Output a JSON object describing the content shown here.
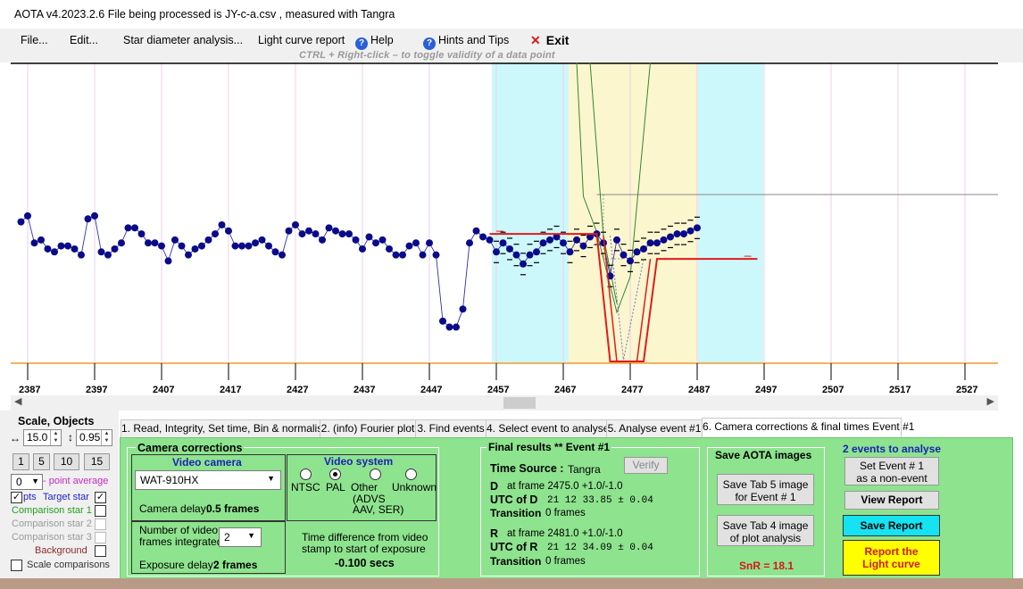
{
  "window": {
    "title": "AOTA v4.2023.2.6   File being processed is  JY-c-a.csv ,  measured with Tangra"
  },
  "menu": {
    "file": "File...",
    "edit": "Edit...",
    "star_diameter": "Star diameter analysis...",
    "light_curve_report": "Light curve report",
    "help": "Help",
    "hints": "Hints and Tips",
    "exit": "Exit",
    "hint": "CTRL + Right-click   –   to toggle validity of a data point"
  },
  "chart_data": {
    "type": "line",
    "x_ticks": [
      2387,
      2397,
      2407,
      2417,
      2427,
      2437,
      2447,
      2457,
      2467,
      2477,
      2487,
      2497,
      2507,
      2517,
      2527
    ],
    "xlim": [
      2386,
      2527
    ],
    "ylim": [
      0,
      100
    ],
    "series_target": [
      [
        2386,
        47
      ],
      [
        2387,
        49
      ],
      [
        2388,
        40
      ],
      [
        2389,
        41
      ],
      [
        2390,
        38
      ],
      [
        2391,
        37
      ],
      [
        2392,
        39
      ],
      [
        2393,
        39
      ],
      [
        2394,
        38
      ],
      [
        2395,
        36
      ],
      [
        2396,
        48
      ],
      [
        2397,
        49
      ],
      [
        2398,
        37
      ],
      [
        2399,
        36
      ],
      [
        2400,
        38
      ],
      [
        2401,
        40
      ],
      [
        2402,
        45
      ],
      [
        2403,
        45
      ],
      [
        2404,
        43
      ],
      [
        2405,
        40
      ],
      [
        2406,
        40
      ],
      [
        2407,
        39
      ],
      [
        2408,
        34
      ],
      [
        2409,
        41
      ],
      [
        2410,
        39
      ],
      [
        2411,
        36
      ],
      [
        2412,
        38
      ],
      [
        2413,
        39
      ],
      [
        2414,
        41
      ],
      [
        2415,
        43
      ],
      [
        2416,
        46
      ],
      [
        2417,
        44
      ],
      [
        2418,
        39
      ],
      [
        2419,
        39
      ],
      [
        2420,
        39
      ],
      [
        2421,
        40
      ],
      [
        2422,
        41
      ],
      [
        2423,
        39
      ],
      [
        2424,
        37
      ],
      [
        2425,
        36
      ],
      [
        2426,
        44
      ],
      [
        2427,
        46
      ],
      [
        2428,
        43
      ],
      [
        2429,
        44
      ],
      [
        2430,
        43
      ],
      [
        2431,
        41
      ],
      [
        2432,
        45
      ],
      [
        2433,
        44
      ],
      [
        2434,
        43
      ],
      [
        2435,
        43
      ],
      [
        2436,
        41
      ],
      [
        2437,
        38
      ],
      [
        2438,
        42
      ],
      [
        2439,
        40
      ],
      [
        2440,
        41
      ],
      [
        2441,
        38
      ],
      [
        2442,
        36
      ],
      [
        2443,
        36
      ],
      [
        2444,
        39
      ],
      [
        2445,
        40
      ],
      [
        2446,
        36
      ],
      [
        2447,
        40
      ],
      [
        2448,
        36
      ],
      [
        2449,
        14
      ],
      [
        2450,
        12
      ],
      [
        2451,
        12
      ],
      [
        2452,
        18
      ],
      [
        2453,
        40
      ],
      [
        2454,
        44
      ],
      [
        2455,
        42
      ],
      [
        2456,
        41
      ],
      [
        2457,
        37
      ],
      [
        2458,
        40
      ],
      [
        2459,
        38
      ],
      [
        2460,
        36
      ],
      [
        2461,
        33
      ],
      [
        2462,
        36
      ],
      [
        2463,
        37
      ],
      [
        2464,
        40
      ],
      [
        2465,
        41
      ],
      [
        2466,
        42
      ],
      [
        2467,
        40
      ],
      [
        2468,
        37
      ],
      [
        2469,
        41
      ],
      [
        2470,
        39
      ],
      [
        2471,
        42
      ],
      [
        2472,
        43
      ],
      [
        2473,
        40
      ],
      [
        2474,
        29
      ],
      [
        2475,
        41
      ],
      [
        2476,
        36
      ],
      [
        2477,
        34
      ],
      [
        2478,
        37
      ],
      [
        2479,
        38
      ],
      [
        2480,
        40
      ],
      [
        2481,
        40
      ],
      [
        2482,
        41
      ],
      [
        2483,
        42
      ],
      [
        2484,
        43
      ],
      [
        2485,
        43
      ],
      [
        2486,
        44
      ],
      [
        2487,
        45
      ]
    ],
    "series_target_comment": "",
    "fit_level_baseline": 43,
    "fit_level_event": 0
  },
  "left": {
    "scale_objects": "Scale,  Objects",
    "scale_val": "15.0",
    "scale_val2": "0.95",
    "btn1": "1",
    "btn5": "5",
    "btn10": "10",
    "btn15": "15",
    "avg_val": "0",
    "avg_label": "- point average",
    "pts": "pts",
    "target_star": "Target star",
    "comp1": "Comparison star 1",
    "comp2": "Comparison star 2",
    "comp3": "Comparison star 3",
    "background": "Background",
    "scale_comparisons": "Scale comparisons"
  },
  "tabs": [
    "1.  Read, Integrity, Set time, Bin & normalise",
    "2. (info)  Fourier plot",
    "3. Find events",
    "4. Select event to analyse",
    "5. Analyse event #1",
    "6. Camera corrections & final times Event #1"
  ],
  "camera": {
    "group_title": "Camera corrections",
    "video_camera": "Video camera",
    "camera_model": "WAT-910HX",
    "camera_delay_label": "Camera delay:",
    "camera_delay_value": "0.5 frames",
    "video_system": "Video system",
    "ntsc": "NTSC",
    "pal": "PAL",
    "other": "Other",
    "unknown": "Unknown",
    "other_detail1": "(ADVS",
    "other_detail2": "AAV, SER)",
    "frames_label1": "Number of video",
    "frames_label2": "frames integrated",
    "frames_value": "2",
    "exposure_delay_label": "Exposure delay:",
    "exposure_delay_value": "2 frames",
    "timediff1": "Time difference from video",
    "timediff2": "stamp to start of exposure",
    "timediff_value": "-0.100 secs"
  },
  "final": {
    "title": "Final results  **   Event #1",
    "time_source_label": "Time Source :",
    "time_source_value": "Tangra",
    "verify": "Verify",
    "d_label": "D",
    "d_frame": "at frame 2475.0  +1.0/-1.0",
    "utc_d_label": "UTC of D",
    "utc_d": "21 12 33.85  ± 0.04",
    "transition": "Transition",
    "transition_d": "0 frames",
    "r_label": "R",
    "r_frame": "at frame 2481.0  +1.0/-1.0",
    "utc_r_label": "UTC of R",
    "utc_r": "21 12 34.09  ± 0.04",
    "transition_r": "0 frames"
  },
  "save": {
    "title": "Save AOTA images",
    "tab5_1": "Save Tab 5 image",
    "tab5_2": "for Event # 1",
    "tab4_1": "Save Tab 4 image",
    "tab4_2": "of plot analysis",
    "snr": "SnR = 18.1"
  },
  "events": {
    "title": "2 events to analyse",
    "set_event1": "Set Event # 1",
    "set_event2": "as a non-event",
    "view_report": "View Report",
    "save_report": "Save Report",
    "report1": "Report the",
    "report2": "Light curve"
  },
  "colors": {
    "panel_green": "#8ee38e",
    "cyan": "#cdf8fb",
    "yellow": "#fcf6cf",
    "fit_red": "#e11b1b",
    "model_green": "#2d8a2d"
  }
}
